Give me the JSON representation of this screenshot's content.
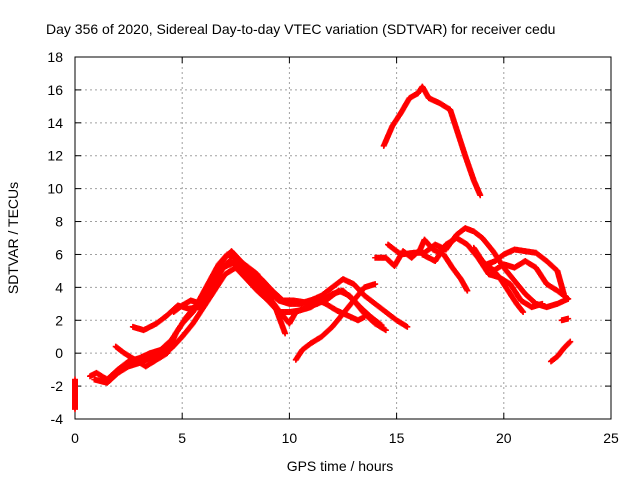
{
  "chart_data": {
    "type": "scatter",
    "title": "Day 356 of 2020, Sidereal Day-to-day VTEC variation (SDTVAR) for receiver cedu",
    "xlabel": "GPS time / hours",
    "ylabel": "SDTVAR / TECUs",
    "xlim": [
      0,
      25
    ],
    "ylim": [
      -4,
      18
    ],
    "x_ticks": [
      0,
      5,
      10,
      15,
      20,
      25
    ],
    "y_ticks": [
      -4,
      -2,
      0,
      2,
      4,
      6,
      8,
      10,
      12,
      14,
      16,
      18
    ],
    "grid": true,
    "marker": "+",
    "color": "#ff0000",
    "series": [
      {
        "name": "t0",
        "points": [
          [
            0,
            -1.6
          ],
          [
            0,
            -2.2
          ],
          [
            0,
            -2.8
          ],
          [
            0,
            -3.4
          ]
        ]
      },
      {
        "name": "s1",
        "points": [
          [
            0.7,
            -1.4
          ],
          [
            1.0,
            -1.2
          ],
          [
            1.5,
            -1.6
          ],
          [
            2.0,
            -1.0
          ],
          [
            2.5,
            -0.5
          ],
          [
            3.0,
            -0.3
          ],
          [
            3.5,
            0.0
          ],
          [
            4.0,
            0.2
          ],
          [
            4.5,
            0.8
          ],
          [
            5.0,
            1.8
          ],
          [
            5.5,
            2.5
          ],
          [
            6.0,
            3.5
          ],
          [
            6.5,
            4.8
          ],
          [
            7.0,
            5.8
          ],
          [
            7.3,
            6.2
          ],
          [
            7.8,
            5.5
          ],
          [
            8.5,
            4.8
          ],
          [
            9.0,
            3.8
          ],
          [
            9.5,
            3.2
          ],
          [
            10.0,
            3.0
          ],
          [
            10.5,
            3.0
          ],
          [
            11.0,
            3.2
          ],
          [
            11.5,
            3.5
          ],
          [
            12.0,
            4.0
          ],
          [
            12.5,
            4.5
          ],
          [
            13.0,
            4.2
          ],
          [
            13.5,
            3.5
          ],
          [
            14.0,
            3.0
          ],
          [
            14.5,
            2.5
          ],
          [
            15.0,
            2.0
          ],
          [
            15.5,
            1.6
          ]
        ]
      },
      {
        "name": "s2",
        "points": [
          [
            0.9,
            -1.6
          ],
          [
            1.5,
            -1.8
          ],
          [
            2.0,
            -1.2
          ],
          [
            2.5,
            -0.8
          ],
          [
            3.0,
            -0.6
          ],
          [
            3.5,
            -0.3
          ],
          [
            4.0,
            0.0
          ],
          [
            4.5,
            0.3
          ],
          [
            5.0,
            1.0
          ],
          [
            5.5,
            1.8
          ],
          [
            6.0,
            2.8
          ],
          [
            6.5,
            3.8
          ],
          [
            7.0,
            4.8
          ],
          [
            7.5,
            5.2
          ],
          [
            8.0,
            4.5
          ],
          [
            8.5,
            3.8
          ],
          [
            9.0,
            3.2
          ],
          [
            9.5,
            2.5
          ],
          [
            10.0,
            2.5
          ],
          [
            10.5,
            2.6
          ],
          [
            11.0,
            2.8
          ],
          [
            11.5,
            3.2
          ],
          [
            12.0,
            3.6
          ],
          [
            12.5,
            3.8
          ],
          [
            13.0,
            3.2
          ],
          [
            13.5,
            2.4
          ],
          [
            14.0,
            1.8
          ],
          [
            14.5,
            1.4
          ]
        ]
      },
      {
        "name": "s3",
        "points": [
          [
            2.7,
            1.6
          ],
          [
            3.2,
            1.4
          ],
          [
            3.8,
            1.8
          ],
          [
            4.3,
            2.3
          ],
          [
            4.8,
            2.9
          ],
          [
            5.3,
            2.7
          ],
          [
            5.8,
            2.8
          ],
          [
            6.3,
            3.8
          ],
          [
            6.8,
            5.0
          ],
          [
            7.2,
            5.6
          ],
          [
            7.6,
            5.3
          ],
          [
            8.0,
            4.8
          ],
          [
            8.5,
            4.2
          ],
          [
            9.0,
            3.5
          ],
          [
            9.5,
            2.6
          ],
          [
            10.0,
            1.8
          ],
          [
            10.3,
            2.5
          ],
          [
            10.8,
            2.8
          ],
          [
            11.3,
            3.0
          ],
          [
            11.8,
            3.3
          ],
          [
            12.3,
            3.8
          ],
          [
            12.8,
            3.5
          ],
          [
            13.3,
            2.8
          ],
          [
            13.8,
            2.2
          ],
          [
            14.3,
            1.7
          ]
        ]
      },
      {
        "name": "s4",
        "points": [
          [
            1.9,
            0.4
          ],
          [
            2.3,
            0.0
          ],
          [
            2.8,
            -0.4
          ],
          [
            3.3,
            -0.8
          ],
          [
            3.8,
            -0.4
          ],
          [
            4.3,
            0.0
          ],
          [
            4.7,
            1.2
          ],
          [
            5.2,
            2.2
          ],
          [
            5.7,
            3.0
          ],
          [
            6.2,
            4.2
          ],
          [
            6.7,
            5.4
          ],
          [
            7.1,
            6.0
          ],
          [
            7.6,
            5.7
          ],
          [
            8.2,
            5.0
          ],
          [
            8.7,
            4.5
          ],
          [
            9.2,
            3.8
          ],
          [
            9.7,
            3.2
          ],
          [
            10.2,
            3.2
          ],
          [
            10.7,
            3.1
          ],
          [
            11.2,
            3.3
          ],
          [
            11.7,
            3.0
          ],
          [
            12.2,
            2.6
          ],
          [
            12.7,
            2.3
          ],
          [
            13.2,
            2.0
          ],
          [
            13.5,
            2.2
          ]
        ]
      },
      {
        "name": "s5",
        "points": [
          [
            4.6,
            2.5
          ],
          [
            5.0,
            2.9
          ],
          [
            5.4,
            3.2
          ],
          [
            5.9,
            3.0
          ],
          [
            6.4,
            4.0
          ],
          [
            6.9,
            5.2
          ],
          [
            7.4,
            5.5
          ],
          [
            7.9,
            5.2
          ],
          [
            8.4,
            4.6
          ],
          [
            8.9,
            3.8
          ],
          [
            9.4,
            2.6
          ],
          [
            9.8,
            1.2
          ]
        ]
      },
      {
        "name": "s6",
        "points": [
          [
            10.3,
            -0.4
          ],
          [
            10.6,
            0.2
          ],
          [
            11.0,
            0.6
          ],
          [
            11.5,
            1.0
          ],
          [
            12.0,
            1.6
          ],
          [
            12.5,
            2.4
          ],
          [
            13.0,
            3.2
          ],
          [
            13.5,
            4.0
          ],
          [
            14.0,
            4.2
          ]
        ]
      },
      {
        "name": "s7",
        "points": [
          [
            14.4,
            12.6
          ],
          [
            14.8,
            13.8
          ],
          [
            15.2,
            14.6
          ],
          [
            15.6,
            15.5
          ],
          [
            16.0,
            15.8
          ],
          [
            16.2,
            16.2
          ],
          [
            16.5,
            15.5
          ],
          [
            17.0,
            15.2
          ],
          [
            17.5,
            14.8
          ],
          [
            17.8,
            13.6
          ],
          [
            18.2,
            12.0
          ],
          [
            18.6,
            10.5
          ],
          [
            18.9,
            9.6
          ]
        ]
      },
      {
        "name": "s8",
        "points": [
          [
            14.0,
            5.8
          ],
          [
            14.5,
            5.8
          ],
          [
            14.9,
            5.3
          ],
          [
            15.3,
            6.2
          ],
          [
            15.7,
            5.8
          ],
          [
            16.1,
            6.3
          ],
          [
            16.3,
            6.9
          ],
          [
            16.7,
            6.3
          ],
          [
            17.2,
            6.0
          ],
          [
            17.6,
            5.2
          ],
          [
            18.0,
            4.5
          ],
          [
            18.3,
            3.8
          ]
        ]
      },
      {
        "name": "s9",
        "points": [
          [
            14.6,
            6.6
          ],
          [
            15.2,
            6.0
          ],
          [
            15.8,
            6.1
          ],
          [
            16.3,
            6.1
          ],
          [
            16.8,
            6.6
          ],
          [
            17.3,
            6.3
          ],
          [
            17.8,
            7.2
          ],
          [
            18.2,
            7.6
          ],
          [
            18.6,
            7.4
          ],
          [
            19.0,
            7.0
          ],
          [
            19.5,
            6.2
          ],
          [
            20.0,
            5.2
          ],
          [
            20.5,
            4.4
          ],
          [
            21.0,
            3.6
          ],
          [
            21.5,
            3.0
          ],
          [
            22.0,
            2.8
          ],
          [
            22.5,
            3.0
          ],
          [
            23.0,
            3.3
          ]
        ]
      },
      {
        "name": "s10",
        "points": [
          [
            16.2,
            6.0
          ],
          [
            16.8,
            5.6
          ],
          [
            17.3,
            6.6
          ],
          [
            17.8,
            7.0
          ],
          [
            18.3,
            6.6
          ],
          [
            18.8,
            5.8
          ],
          [
            19.3,
            4.8
          ],
          [
            19.8,
            4.6
          ],
          [
            20.3,
            4.2
          ],
          [
            20.8,
            3.2
          ],
          [
            21.3,
            2.8
          ],
          [
            21.8,
            3.0
          ]
        ]
      },
      {
        "name": "s11",
        "points": [
          [
            18.6,
            6.4
          ],
          [
            19.0,
            5.6
          ],
          [
            19.5,
            5.0
          ],
          [
            20.0,
            5.4
          ],
          [
            20.5,
            5.2
          ],
          [
            21.0,
            5.6
          ],
          [
            21.5,
            5.2
          ],
          [
            22.0,
            4.2
          ],
          [
            22.5,
            3.8
          ],
          [
            23.0,
            3.3
          ]
        ]
      },
      {
        "name": "s12",
        "points": [
          [
            19.2,
            5.4
          ],
          [
            19.6,
            5.6
          ],
          [
            20.0,
            6.0
          ],
          [
            20.5,
            6.3
          ],
          [
            21.0,
            6.2
          ],
          [
            21.5,
            6.1
          ],
          [
            22.0,
            5.6
          ],
          [
            22.5,
            5.0
          ],
          [
            22.8,
            3.6
          ]
        ]
      },
      {
        "name": "s13",
        "points": [
          [
            19.4,
            5.2
          ],
          [
            19.8,
            4.6
          ],
          [
            20.2,
            3.8
          ],
          [
            20.6,
            3.0
          ],
          [
            20.9,
            2.5
          ]
        ]
      },
      {
        "name": "s14",
        "points": [
          [
            22.2,
            -0.5
          ],
          [
            22.5,
            -0.2
          ],
          [
            22.8,
            0.3
          ],
          [
            23.1,
            0.7
          ]
        ]
      },
      {
        "name": "s15",
        "points": [
          [
            22.7,
            2.0
          ],
          [
            23.0,
            2.1
          ]
        ]
      }
    ]
  }
}
